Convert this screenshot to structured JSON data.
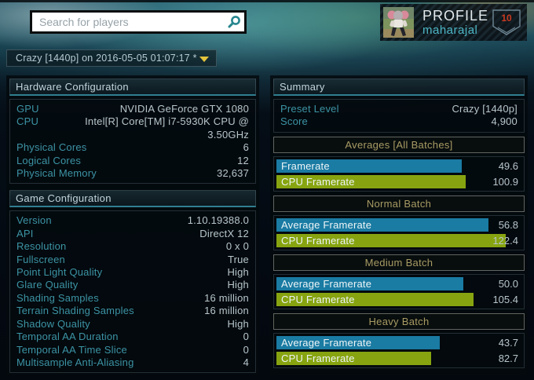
{
  "top_bar": {
    "search_placeholder": "Search for players",
    "profile_label": "PROFILE",
    "username": "maharajal",
    "level": "10"
  },
  "run_selector": {
    "label": "Crazy [1440p] on 2016-05-05 01:07:17 *"
  },
  "hardware": {
    "title": "Hardware Configuration",
    "rows": [
      {
        "label": "GPU",
        "value": "NVIDIA GeForce GTX 1080"
      },
      {
        "label": "CPU",
        "value": "Intel[R] Core[TM] i7-5930K CPU @ 3.50GHz"
      },
      {
        "label": "Physical Cores",
        "value": "6"
      },
      {
        "label": "Logical Cores",
        "value": "12"
      },
      {
        "label": "Physical Memory",
        "value": "32,637"
      }
    ]
  },
  "game_config": {
    "title": "Game Configuration",
    "rows": [
      {
        "label": "Version",
        "value": "1.10.19388.0"
      },
      {
        "label": "API",
        "value": "DirectX 12"
      },
      {
        "label": "Resolution",
        "value": "0 x 0"
      },
      {
        "label": "Fullscreen",
        "value": "True"
      },
      {
        "label": "Point Light Quality",
        "value": "High"
      },
      {
        "label": "Glare Quality",
        "value": "High"
      },
      {
        "label": "Shading Samples",
        "value": "16 million"
      },
      {
        "label": "Terrain Shading Samples",
        "value": "16 million"
      },
      {
        "label": "Shadow Quality",
        "value": "High"
      },
      {
        "label": "Temporal AA Duration",
        "value": "0"
      },
      {
        "label": "Temporal AA Time Slice",
        "value": "0"
      },
      {
        "label": "Multisample Anti-Aliasing",
        "value": "4"
      }
    ]
  },
  "summary": {
    "title": "Summary",
    "rows": [
      {
        "label": "Preset Level",
        "value": "Crazy [1440p]"
      },
      {
        "label": "Score",
        "value": "4,900"
      }
    ]
  },
  "chart_data": {
    "type": "bar",
    "title": "Benchmark framerates by batch",
    "legend_position": "labels-inside-bars",
    "series_colors": {
      "gpu": "#1a7ba3",
      "cpu": "#87a410"
    },
    "bar_scale": {
      "gpu": {
        "max": 56.8,
        "max_pct": 86.5
      },
      "cpu": {
        "max": 122.4,
        "max_pct": 93.6
      }
    },
    "sections": [
      {
        "title": "Averages [All Batches]",
        "bars": [
          {
            "label": "Framerate",
            "series": "gpu",
            "value": 49.6,
            "display": "49.6"
          },
          {
            "label": "CPU Framerate",
            "series": "cpu",
            "value": 100.9,
            "display": "100.9"
          }
        ]
      },
      {
        "title": "Normal Batch",
        "bars": [
          {
            "label": "Average Framerate",
            "series": "gpu",
            "value": 56.8,
            "display": "56.8"
          },
          {
            "label": "CPU Framerate",
            "series": "cpu",
            "value": 122.4,
            "display": "122.4"
          }
        ]
      },
      {
        "title": "Medium Batch",
        "bars": [
          {
            "label": "Average Framerate",
            "series": "gpu",
            "value": 50.0,
            "display": "50.0"
          },
          {
            "label": "CPU Framerate",
            "series": "cpu",
            "value": 105.4,
            "display": "105.4"
          }
        ]
      },
      {
        "title": "Heavy Batch",
        "bars": [
          {
            "label": "Average Framerate",
            "series": "gpu",
            "value": 43.7,
            "display": "43.7"
          },
          {
            "label": "CPU Framerate",
            "series": "cpu",
            "value": 82.7,
            "display": "82.7"
          }
        ]
      }
    ]
  },
  "colors": {
    "label_teal": "#3c93a4",
    "value_text": "#b7c6cc",
    "batch_header_text": "#a89c64",
    "bar_blue": "#1a7ba3",
    "bar_green": "#87a410",
    "dropdown_arrow": "#e3c43c",
    "badge_number": "#c93a20",
    "username_teal": "#4cb6c4"
  }
}
